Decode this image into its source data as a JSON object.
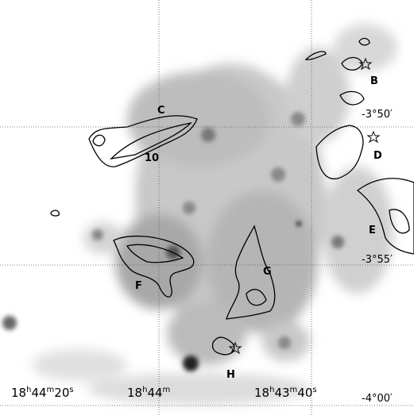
{
  "sky_map": {
    "ra_labels": [
      [
        "18",
        "h",
        "44",
        "m",
        "20",
        "s"
      ],
      [
        "18",
        "h",
        "44",
        "m"
      ],
      [
        "18",
        "h",
        "43",
        "m",
        "40",
        "s"
      ]
    ],
    "dec_labels": [
      "-3°50′",
      "-3°55′",
      "-4°00′"
    ],
    "sources": [
      "B",
      "C",
      "D",
      "E",
      "F",
      "G",
      "H",
      "10"
    ]
  }
}
